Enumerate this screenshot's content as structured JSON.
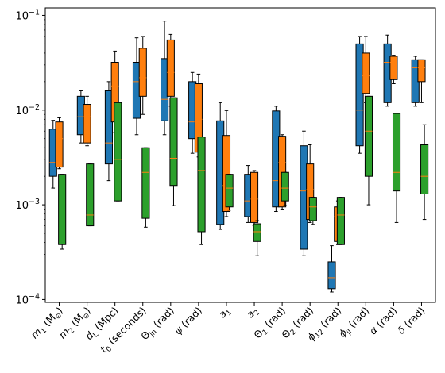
{
  "chart_data": {
    "type": "boxplot",
    "title": "",
    "xlabel": "",
    "ylabel": "",
    "yscale": "log",
    "ylim": [
      0.0001,
      0.12
    ],
    "yticks": [
      {
        "value": 0.0001,
        "base": "10",
        "exp": "−4"
      },
      {
        "value": 0.001,
        "base": "10",
        "exp": "−3"
      },
      {
        "value": 0.01,
        "base": "10",
        "exp": "−2"
      },
      {
        "value": 0.1,
        "base": "10",
        "exp": "−1"
      }
    ],
    "categories": [
      {
        "main": "m",
        "sub": "1",
        "unit": " (M",
        "unitSub": "⊙",
        "tail": ")"
      },
      {
        "main": "m",
        "sub": "2",
        "unit": " (M",
        "unitSub": "⊙",
        "tail": ")"
      },
      {
        "main": "d",
        "sub": "L",
        "unit": " (Mpc)",
        "unitSub": "",
        "tail": ""
      },
      {
        "main": "t",
        "sub": "0",
        "unit": " (seconds)",
        "unitSub": "",
        "tail": ""
      },
      {
        "main": "Θ",
        "sub": "jn",
        "unit": " (rad)",
        "unitSub": "",
        "tail": ""
      },
      {
        "main": "ψ",
        "sub": "",
        "unit": " (rad)",
        "unitSub": "",
        "tail": ""
      },
      {
        "main": "a",
        "sub": "1",
        "unit": "",
        "unitSub": "",
        "tail": ""
      },
      {
        "main": "a",
        "sub": "2",
        "unit": "",
        "unitSub": "",
        "tail": ""
      },
      {
        "main": "Θ",
        "sub": "1",
        "unit": " (rad)",
        "unitSub": "",
        "tail": ""
      },
      {
        "main": "Θ",
        "sub": "2",
        "unit": " (rad)",
        "unitSub": "",
        "tail": ""
      },
      {
        "main": "ϕ",
        "sub": "12",
        "unit": " (rad)",
        "unitSub": "",
        "tail": ""
      },
      {
        "main": "ϕ",
        "sub": "jl",
        "unit": " (rad)",
        "unitSub": "",
        "tail": ""
      },
      {
        "main": "α",
        "sub": "",
        "unit": " (rad)",
        "unitSub": "",
        "tail": ""
      },
      {
        "main": "δ",
        "sub": "",
        "unit": " (rad)",
        "unitSub": "",
        "tail": ""
      }
    ],
    "series": [
      {
        "color": "#1f77b4",
        "boxes": [
          {
            "wlo": 0.0015,
            "q1": 0.002,
            "med": 0.0028,
            "q3": 0.0063,
            "whi": 0.0078
          },
          {
            "wlo": 0.0045,
            "q1": 0.0055,
            "med": 0.0085,
            "q3": 0.014,
            "whi": 0.016
          },
          {
            "wlo": 0.0018,
            "q1": 0.0027,
            "med": 0.0045,
            "q3": 0.016,
            "whi": 0.02
          },
          {
            "wlo": 0.0055,
            "q1": 0.0082,
            "med": 0.02,
            "q3": 0.032,
            "whi": 0.058
          },
          {
            "wlo": 0.0055,
            "q1": 0.0077,
            "med": 0.013,
            "q3": 0.035,
            "whi": 0.087
          },
          {
            "wlo": 0.0035,
            "q1": 0.005,
            "med": 0.0075,
            "q3": 0.02,
            "whi": 0.025
          },
          {
            "wlo": 0.00055,
            "q1": 0.00062,
            "med": 0.0013,
            "q3": 0.0077,
            "whi": 0.012
          },
          {
            "wlo": 0.00065,
            "q1": 0.00075,
            "med": 0.0011,
            "q3": 0.0021,
            "whi": 0.0026
          },
          {
            "wlo": 0.00085,
            "q1": 0.00095,
            "med": 0.0018,
            "q3": 0.0098,
            "whi": 0.011
          },
          {
            "wlo": 0.00029,
            "q1": 0.00034,
            "med": 0.0014,
            "q3": 0.0042,
            "whi": 0.006
          },
          {
            "wlo": 0.00012,
            "q1": 0.00013,
            "med": 0.00017,
            "q3": 0.00025,
            "whi": 0.00037
          },
          {
            "wlo": 0.0035,
            "q1": 0.0042,
            "med": 0.01,
            "q3": 0.05,
            "whi": 0.06
          },
          {
            "wlo": 0.011,
            "q1": 0.012,
            "med": 0.032,
            "q3": 0.05,
            "whi": 0.062
          },
          {
            "wlo": 0.011,
            "q1": 0.012,
            "med": 0.028,
            "q3": 0.034,
            "whi": 0.037
          }
        ]
      },
      {
        "color": "#ff7f0e",
        "boxes": [
          {
            "wlo": 0.0024,
            "q1": 0.0025,
            "med": 0.005,
            "q3": 0.0075,
            "whi": 0.0083
          },
          {
            "wlo": 0.0042,
            "q1": 0.0045,
            "med": 0.0085,
            "q3": 0.0115,
            "whi": 0.014
          },
          {
            "wlo": 0.0058,
            "q1": 0.0075,
            "med": 0.018,
            "q3": 0.032,
            "whi": 0.042
          },
          {
            "wlo": 0.009,
            "q1": 0.014,
            "med": 0.022,
            "q3": 0.045,
            "whi": 0.06
          },
          {
            "wlo": 0.011,
            "q1": 0.014,
            "med": 0.025,
            "q3": 0.055,
            "whi": 0.063
          },
          {
            "wlo": 0.0032,
            "q1": 0.0036,
            "med": 0.008,
            "q3": 0.019,
            "whi": 0.024
          },
          {
            "wlo": 0.00075,
            "q1": 0.00085,
            "med": 0.0016,
            "q3": 0.0054,
            "whi": 0.0099
          },
          {
            "wlo": 0.0006,
            "q1": 0.00065,
            "med": 0.00115,
            "q3": 0.0022,
            "whi": 0.0023
          },
          {
            "wlo": 0.0009,
            "q1": 0.00095,
            "med": 0.0028,
            "q3": 0.0053,
            "whi": 0.0055
          },
          {
            "wlo": 0.00065,
            "q1": 0.0007,
            "med": 0.00145,
            "q3": 0.0027,
            "whi": 0.0043
          },
          {
            "wlo": 0.00038,
            "q1": 0.00041,
            "med": 0.00075,
            "q3": 0.00095,
            "whi": 0.0011
          },
          {
            "wlo": 0.012,
            "q1": 0.015,
            "med": 0.023,
            "q3": 0.04,
            "whi": 0.06
          },
          {
            "wlo": 0.019,
            "q1": 0.021,
            "med": 0.032,
            "q3": 0.037,
            "whi": 0.038
          },
          {
            "wlo": 0.012,
            "q1": 0.02,
            "med": 0.028,
            "q3": 0.034,
            "whi": 0.034
          }
        ]
      },
      {
        "color": "#2ca02c",
        "boxes": [
          {
            "wlo": 0.00034,
            "q1": 0.00038,
            "med": 0.0013,
            "q3": 0.0021,
            "whi": 0.0021
          },
          {
            "wlo": 0.0006,
            "q1": 0.0006,
            "med": 0.00078,
            "q3": 0.0027,
            "whi": 0.0027
          },
          {
            "wlo": 0.0011,
            "q1": 0.0011,
            "med": 0.003,
            "q3": 0.012,
            "whi": 0.012
          },
          {
            "wlo": 0.00058,
            "q1": 0.00072,
            "med": 0.0022,
            "q3": 0.004,
            "whi": 0.004
          },
          {
            "wlo": 0.00098,
            "q1": 0.0016,
            "med": 0.0031,
            "q3": 0.0135,
            "whi": 0.0135
          },
          {
            "wlo": 0.00038,
            "q1": 0.00052,
            "med": 0.0023,
            "q3": 0.0052,
            "whi": 0.0052
          },
          {
            "wlo": 0.00088,
            "q1": 0.00095,
            "med": 0.0015,
            "q3": 0.0021,
            "whi": 0.0021
          },
          {
            "wlo": 0.00029,
            "q1": 0.00041,
            "med": 0.00052,
            "q3": 0.00063,
            "whi": 0.00068
          },
          {
            "wlo": 0.00098,
            "q1": 0.0011,
            "med": 0.0015,
            "q3": 0.0022,
            "whi": 0.0022
          },
          {
            "wlo": 0.00062,
            "q1": 0.00068,
            "med": 0.00095,
            "q3": 0.0012,
            "whi": 0.0012
          },
          {
            "wlo": 0.00038,
            "q1": 0.00038,
            "med": 0.00078,
            "q3": 0.0012,
            "whi": 0.0012
          },
          {
            "wlo": 0.001,
            "q1": 0.002,
            "med": 0.006,
            "q3": 0.014,
            "whi": 0.014
          },
          {
            "wlo": 0.00065,
            "q1": 0.0014,
            "med": 0.0022,
            "q3": 0.0092,
            "whi": 0.0092
          },
          {
            "wlo": 0.0007,
            "q1": 0.0013,
            "med": 0.002,
            "q3": 0.0043,
            "whi": 0.007
          }
        ]
      }
    ]
  }
}
